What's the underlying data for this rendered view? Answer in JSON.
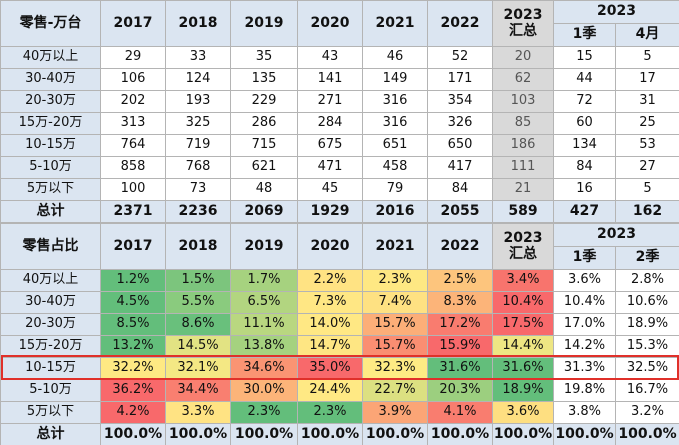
{
  "tables": [
    {
      "header": {
        "label": "零售-万台",
        "years": [
          "2017",
          "2018",
          "2019",
          "2020",
          "2021",
          "2022"
        ],
        "summary_year": "2023",
        "summary_label": "汇总",
        "group": "2023",
        "sub": [
          "1季",
          "4月"
        ]
      },
      "rows": [
        {
          "label": "40万以上",
          "values": [
            29,
            33,
            35,
            43,
            46,
            52,
            20,
            15,
            5
          ]
        },
        {
          "label": "30-40万",
          "values": [
            106,
            124,
            135,
            141,
            149,
            171,
            62,
            44,
            17
          ]
        },
        {
          "label": "20-30万",
          "values": [
            202,
            193,
            229,
            271,
            316,
            354,
            103,
            72,
            31
          ]
        },
        {
          "label": "15万-20万",
          "values": [
            313,
            325,
            286,
            284,
            316,
            326,
            85,
            60,
            25
          ]
        },
        {
          "label": "10-15万",
          "values": [
            764,
            719,
            715,
            675,
            651,
            650,
            186,
            134,
            53
          ]
        },
        {
          "label": "5-10万",
          "values": [
            858,
            768,
            621,
            471,
            458,
            417,
            111,
            84,
            27
          ]
        },
        {
          "label": "5万以下",
          "values": [
            100,
            73,
            48,
            45,
            79,
            84,
            21,
            16,
            5
          ]
        }
      ],
      "total": {
        "label": "总计",
        "values": [
          2371,
          2236,
          2069,
          1929,
          2016,
          2055,
          589,
          427,
          162
        ]
      }
    },
    {
      "header": {
        "label": "零售占比",
        "years": [
          "2017",
          "2018",
          "2019",
          "2020",
          "2021",
          "2022"
        ],
        "summary_year": "2023",
        "summary_label": "汇总",
        "group": "2023",
        "sub": [
          "1季",
          "2季"
        ]
      },
      "rows": [
        {
          "label": "40万以上",
          "values": [
            "1.2%",
            "1.5%",
            "1.7%",
            "2.2%",
            "2.3%",
            "2.5%",
            "3.4%",
            "3.6%",
            "2.8%"
          ],
          "colors": [
            "#63be7b",
            "#7cc57d",
            "#a6d27f",
            "#ffe383",
            "#fee883",
            "#fdc57d",
            "#f8746d",
            null,
            null
          ]
        },
        {
          "label": "30-40万",
          "values": [
            "4.5%",
            "5.5%",
            "6.5%",
            "7.3%",
            "7.4%",
            "8.3%",
            "10.4%",
            "10.4%",
            "10.6%"
          ],
          "colors": [
            "#63be7b",
            "#8acb7e",
            "#b2d580",
            "#ffe784",
            "#fee182",
            "#fcb479",
            "#f8696b",
            null,
            null
          ]
        },
        {
          "label": "20-30万",
          "values": [
            "8.5%",
            "8.6%",
            "11.1%",
            "14.0%",
            "15.7%",
            "17.2%",
            "17.5%",
            "17.0%",
            "18.9%"
          ],
          "colors": [
            "#63be7b",
            "#69c07c",
            "#b9d780",
            "#ffe884",
            "#fcae78",
            "#f97c6f",
            "#f8696b",
            null,
            null
          ]
        },
        {
          "label": "15万-20万",
          "values": [
            "13.2%",
            "14.5%",
            "13.8%",
            "14.7%",
            "15.7%",
            "15.9%",
            "14.4%",
            "14.2%",
            "15.3%"
          ],
          "colors": [
            "#63be7b",
            "#e2e383",
            "#a5d27f",
            "#fee683",
            "#fa8e72",
            "#f8696b",
            "#eee683",
            null,
            null
          ]
        },
        {
          "label": "10-15万",
          "values": [
            "32.2%",
            "32.1%",
            "34.6%",
            "35.0%",
            "32.3%",
            "31.6%",
            "31.6%",
            "31.3%",
            "32.5%"
          ],
          "colors": [
            "#fee983",
            "#f4e884",
            "#fa9473",
            "#f8696b",
            "#feeb84",
            "#63be7b",
            "#63be7b",
            null,
            null
          ]
        },
        {
          "label": "5-10万",
          "values": [
            "36.2%",
            "34.4%",
            "30.0%",
            "24.4%",
            "22.7%",
            "20.3%",
            "18.9%",
            "19.8%",
            "16.7%"
          ],
          "colors": [
            "#f8696b",
            "#f97f70",
            "#fcb479",
            "#ffe984",
            "#dce081",
            "#9ccf7f",
            "#63be7b",
            null,
            null
          ]
        },
        {
          "label": "5万以下",
          "values": [
            "4.2%",
            "3.3%",
            "2.3%",
            "2.3%",
            "3.9%",
            "4.1%",
            "3.6%",
            "3.8%",
            "3.2%"
          ],
          "colors": [
            "#f8696b",
            "#ffe383",
            "#63be7b",
            "#63be7b",
            "#fba576",
            "#f97d6f",
            "#fedf81",
            null,
            null
          ]
        }
      ],
      "total": {
        "label": "总计",
        "values": [
          "100.0%",
          "100.0%",
          "100.0%",
          "100.0%",
          "100.0%",
          "100.0%",
          "100.0%",
          "100.0%",
          "100.0%"
        ]
      }
    }
  ]
}
